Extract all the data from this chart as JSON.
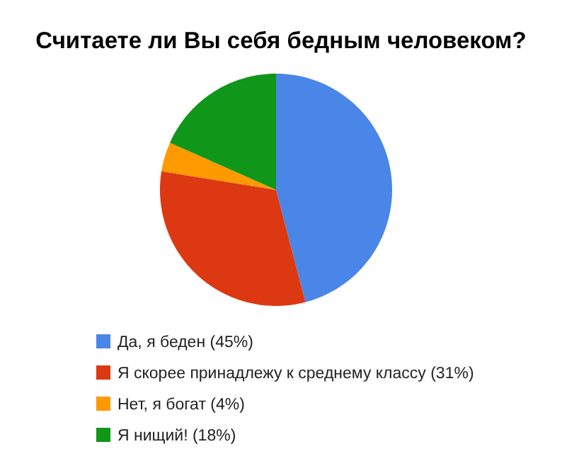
{
  "chart_data": {
    "type": "pie",
    "title": "Считаете ли Вы себя бедным человеком?",
    "categories": [
      "Да, я беден (45%)",
      "Я скорее принадлежу к среднему классу (31%)",
      "Нет, я богат (4%)",
      "Я нищий! (18%)"
    ],
    "values": [
      45,
      31,
      4,
      18
    ],
    "colors": [
      "#4a86e8",
      "#dc3912",
      "#ff9900",
      "#109618"
    ],
    "legend": "bottom"
  }
}
